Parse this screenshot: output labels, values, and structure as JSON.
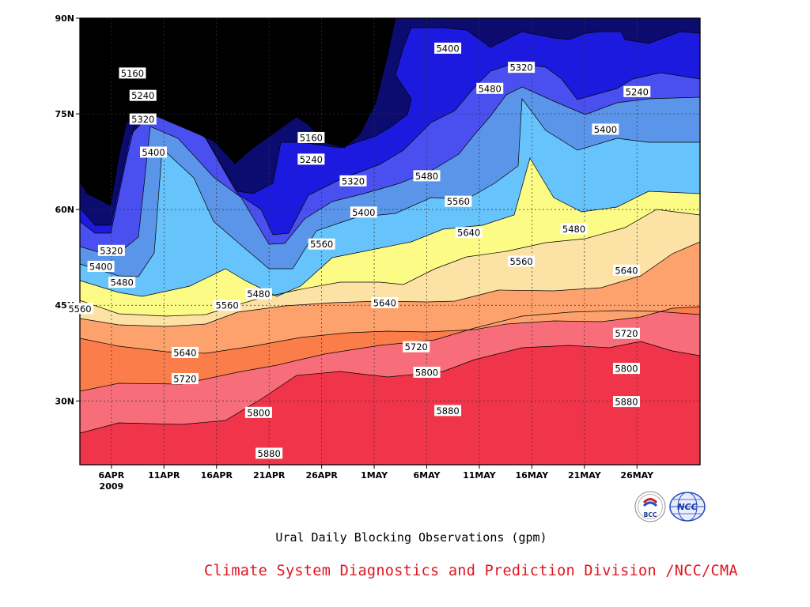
{
  "colors": {
    "bands": [
      "#f0344a",
      "#f76e7a",
      "#fb7d4a",
      "#fda26c",
      "#fde2a6",
      "#fbfb86",
      "#67c3fb",
      "#5a95e9",
      "#4a4ff0",
      "#1d1adf",
      "#0c0c70"
    ],
    "footer": "#e0141e"
  },
  "chart_data": {
    "type": "contour",
    "x_ticks": [
      "6APR",
      "11APR",
      "16APR",
      "21APR",
      "26APR",
      "1MAY",
      "6MAY",
      "11MAY",
      "16MAY",
      "21MAY",
      "26MAY"
    ],
    "x_year": "2009",
    "y_ticks": [
      "30N",
      "45N",
      "60N",
      "75N",
      "90N"
    ],
    "xlim": [
      "2009-04-03",
      "2009-06-01"
    ],
    "ylim": [
      20,
      90
    ],
    "grid": true,
    "levels": [
      5160,
      5240,
      5320,
      5400,
      5480,
      5560,
      5640,
      5720,
      5800,
      5880
    ],
    "band_levels": [
      "5880+",
      "5800-5880",
      "5720-5800",
      "5640-5720",
      "5560-5640",
      "5480-5560",
      "5400-5480",
      "5320-5400",
      "5240-5320",
      "5160-5240",
      "<5160"
    ],
    "contour_labels": [
      {
        "text": "5160",
        "date": "2009-04-08",
        "lat": 81.4
      },
      {
        "text": "5240",
        "date": "2009-04-09",
        "lat": 77.9
      },
      {
        "text": "5320",
        "date": "2009-04-09",
        "lat": 74.2
      },
      {
        "text": "5400",
        "date": "2009-04-10",
        "lat": 69.0
      },
      {
        "text": "5160",
        "date": "2009-04-25",
        "lat": 71.3
      },
      {
        "text": "5240",
        "date": "2009-04-25",
        "lat": 67.9
      },
      {
        "text": "5320",
        "date": "2009-04-29",
        "lat": 64.5
      },
      {
        "text": "5400",
        "date": "2009-04-30",
        "lat": 59.6
      },
      {
        "text": "5400",
        "date": "2009-05-08",
        "lat": 85.3
      },
      {
        "text": "5320",
        "date": "2009-05-15",
        "lat": 82.3
      },
      {
        "text": "5480",
        "date": "2009-05-12",
        "lat": 79.0
      },
      {
        "text": "5240",
        "date": "2009-05-26",
        "lat": 78.5
      },
      {
        "text": "5400",
        "date": "2009-05-23",
        "lat": 72.6
      },
      {
        "text": "5480",
        "date": "2009-05-06",
        "lat": 65.3
      },
      {
        "text": "5560",
        "date": "2009-05-09",
        "lat": 61.3
      },
      {
        "text": "5480",
        "date": "2009-05-20",
        "lat": 57.0
      },
      {
        "text": "5640",
        "date": "2009-05-10",
        "lat": 56.4
      },
      {
        "text": "5560",
        "date": "2009-05-15",
        "lat": 51.9
      },
      {
        "text": "5640",
        "date": "2009-05-25",
        "lat": 50.5
      },
      {
        "text": "5320",
        "date": "2009-04-06",
        "lat": 53.6
      },
      {
        "text": "5400",
        "date": "2009-04-05",
        "lat": 51.1
      },
      {
        "text": "5480",
        "date": "2009-04-07",
        "lat": 48.6
      },
      {
        "text": "5560",
        "date": "2009-04-03",
        "lat": 44.5
      },
      {
        "text": "5560",
        "date": "2009-04-17",
        "lat": 45.0
      },
      {
        "text": "5480",
        "date": "2009-04-20",
        "lat": 46.8
      },
      {
        "text": "5560",
        "date": "2009-04-26",
        "lat": 54.6
      },
      {
        "text": "5640",
        "date": "2009-05-02",
        "lat": 45.4
      },
      {
        "text": "5720",
        "date": "2009-05-05",
        "lat": 38.5
      },
      {
        "text": "5800",
        "date": "2009-05-06",
        "lat": 34.5
      },
      {
        "text": "5720",
        "date": "2009-05-25",
        "lat": 40.6
      },
      {
        "text": "5800",
        "date": "2009-05-25",
        "lat": 35.1
      },
      {
        "text": "5640",
        "date": "2009-04-13",
        "lat": 37.6
      },
      {
        "text": "5720",
        "date": "2009-04-13",
        "lat": 33.5
      },
      {
        "text": "5800",
        "date": "2009-04-20",
        "lat": 28.2
      },
      {
        "text": "5880",
        "date": "2009-04-21",
        "lat": 21.8
      },
      {
        "text": "5880",
        "date": "2009-05-08",
        "lat": 28.5
      },
      {
        "text": "5880",
        "date": "2009-05-25",
        "lat": 29.9
      }
    ]
  },
  "subtitle": "Ural Daily Blocking Observations (gpm)",
  "footer": "Climate System Diagnostics and Prediction Division /NCC/CMA",
  "logos": {
    "left": {
      "icon": "bcc-logo",
      "text": "BCC"
    },
    "right": {
      "icon": "ncc-logo",
      "text": "NCC"
    }
  }
}
